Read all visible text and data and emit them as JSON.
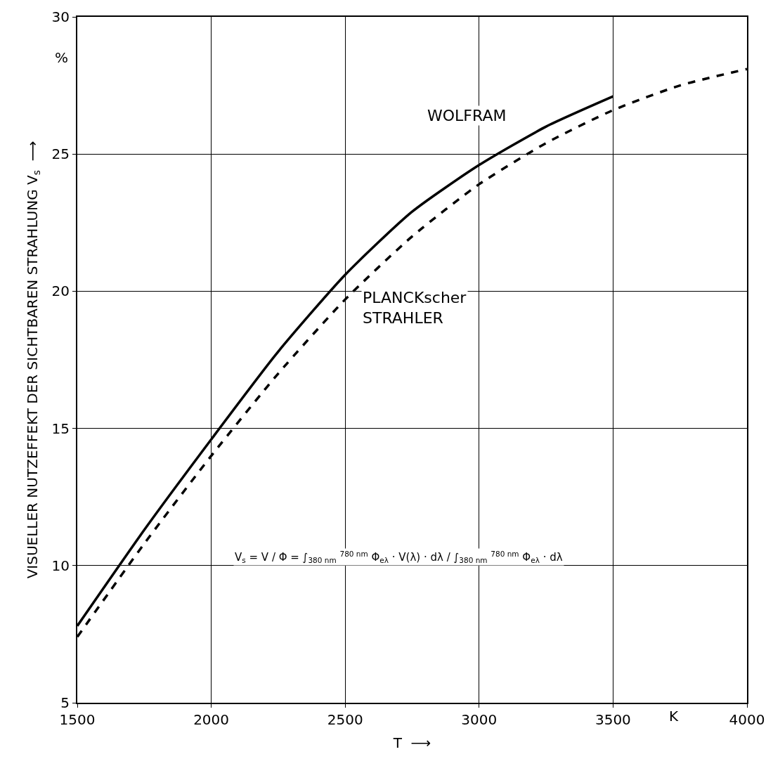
{
  "chart_data": {
    "type": "line",
    "xlabel": "T  ⟶",
    "ylabel": "VISUELLER NUTZEFFEKT DER SICHTBAREN STRAHLUNG V$_{s}$  ⟶",
    "x": [
      1500,
      1750,
      2000,
      2250,
      2500,
      2750,
      3000,
      3250,
      3500,
      3750,
      4000
    ],
    "series": [
      {
        "name": "WOLFRAM",
        "color": "#000000",
        "line_style": "solid",
        "values": [
          7.8,
          11.3,
          14.6,
          17.8,
          20.6,
          22.9,
          24.6,
          26.0,
          27.1,
          null,
          null
        ]
      },
      {
        "name": "PLANCKscher STRAHLER",
        "color": "#000000",
        "line_style": "dashed",
        "values": [
          7.4,
          10.8,
          14.0,
          17.0,
          19.7,
          22.0,
          23.9,
          25.4,
          26.6,
          27.5,
          28.1
        ]
      }
    ],
    "xlim": [
      1500,
      4000
    ],
    "ylim": [
      5,
      30
    ],
    "xticks": [
      1500,
      2000,
      2500,
      3000,
      3500,
      4000
    ],
    "yticks": [
      5,
      10,
      15,
      20,
      25,
      30
    ],
    "grid": true,
    "legend": false,
    "marker": "none",
    "annotations": [
      "V$_{s}$ = V / Φ = ∫$_{380 nm}$ $^{780 nm}$ Φ$_{eλ}$ · V(λ) · dλ / ∫$_{380 nm}$ $^{780 nm}$ Φ$_{eλ}$ · dλ",
      "%",
      "K"
    ]
  }
}
